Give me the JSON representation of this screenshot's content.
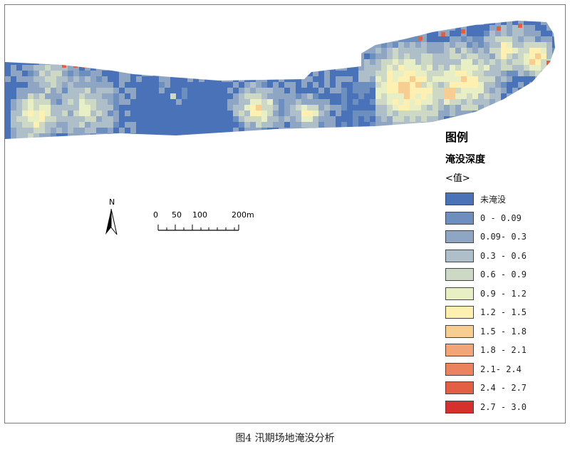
{
  "legend": {
    "title": "图例",
    "subtitle": "淹没深度",
    "subtitle2": "<值>",
    "items": [
      {
        "label": "未淹没",
        "color": "#4a72b8"
      },
      {
        "label": "0 - 0.09",
        "color": "#6d8fc0"
      },
      {
        "label": "0.09- 0.3",
        "color": "#8ea5c4"
      },
      {
        "label": "0.3 - 0.6",
        "color": "#aebfca"
      },
      {
        "label": "0.6 - 0.9",
        "color": "#cdd9c5"
      },
      {
        "label": "0.9 - 1.2",
        "color": "#e9efc4"
      },
      {
        "label": "1.2 - 1.5",
        "color": "#fdf0b0"
      },
      {
        "label": "1.5 - 1.8",
        "color": "#f7cd92"
      },
      {
        "label": "1.8 - 2.1",
        "color": "#f2a677"
      },
      {
        "label": "2.1- 2.4",
        "color": "#ec835f"
      },
      {
        "label": "2.4 - 2.7",
        "color": "#e35f44"
      },
      {
        "label": "2.7 - 3.0",
        "color": "#d6302d"
      }
    ]
  },
  "north_arrow": {
    "label": "N"
  },
  "scale_bar": {
    "ticks": [
      "0",
      "50",
      "100",
      "200"
    ],
    "unit": "m"
  },
  "caption": "图4 汛期场地淹没分析"
}
